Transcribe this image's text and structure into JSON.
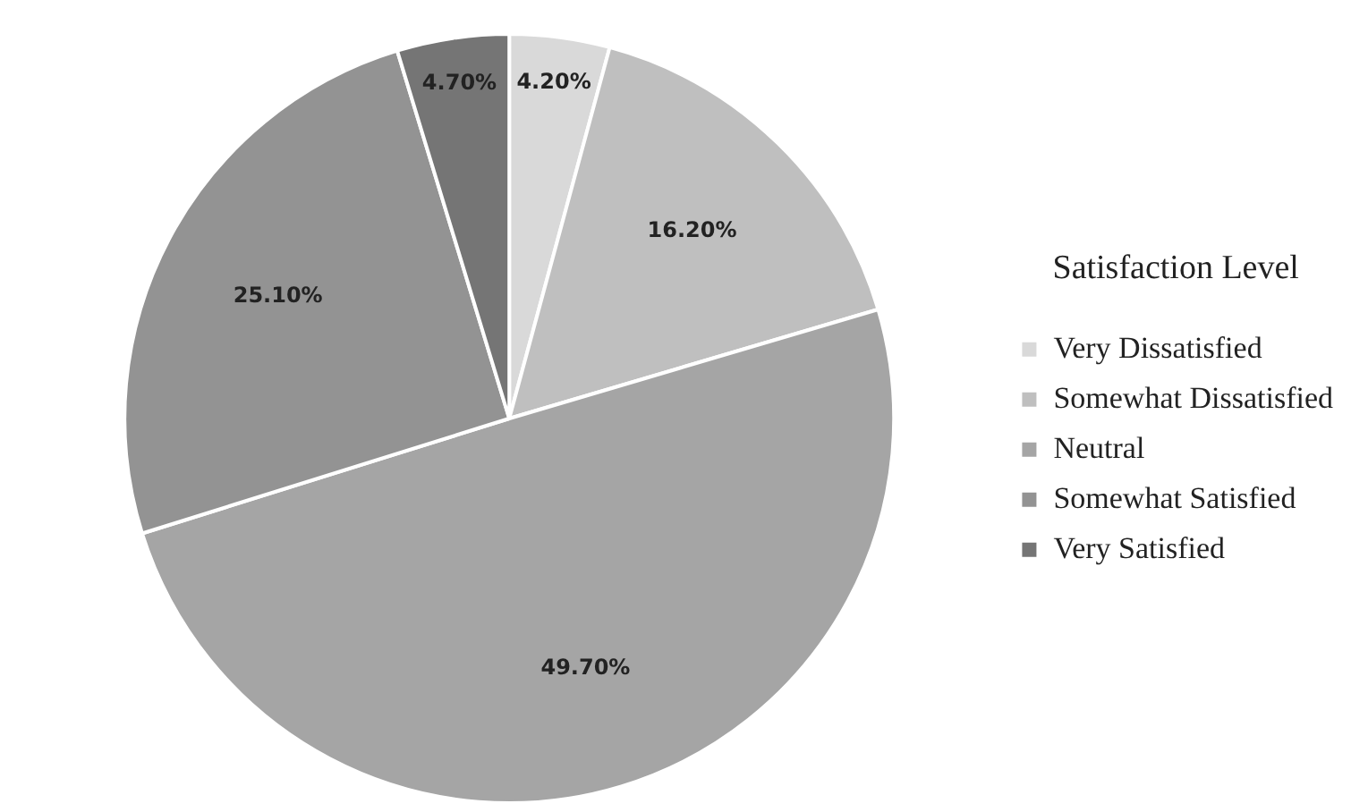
{
  "chart_data": {
    "type": "pie",
    "legend_title": "Satisfaction Level",
    "legend": "right",
    "categories": [
      "Very Dissatisfied",
      "Somewhat Dissatisfied",
      "Neutral",
      "Somewhat Satisfied",
      "Very Satisfied"
    ],
    "values": [
      4.2,
      16.2,
      49.7,
      25.1,
      4.7
    ],
    "value_labels": [
      "4.20%",
      "16.20%",
      "49.70%",
      "25.10%",
      "4.70%"
    ],
    "colors": [
      "#d9d9d9",
      "#bfbfbf",
      "#a5a5a5",
      "#939393",
      "#757575"
    ]
  }
}
